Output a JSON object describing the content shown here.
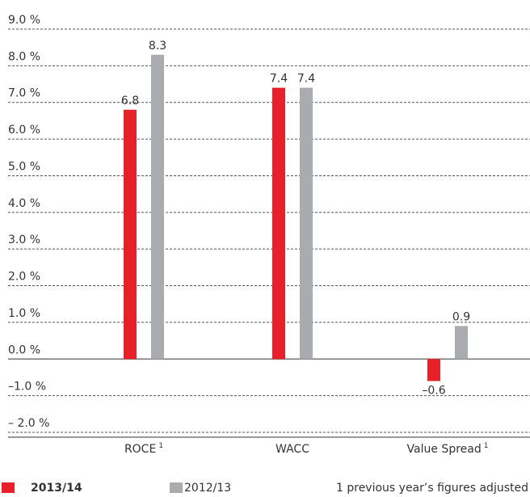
{
  "chart_data": {
    "type": "bar",
    "categories": [
      "ROCE",
      "WACC",
      "Value Spread"
    ],
    "category_notes": [
      "1",
      null,
      "1"
    ],
    "series": [
      {
        "name": "2013/14",
        "color": "#e8202a",
        "values": [
          6.8,
          7.4,
          -0.6
        ],
        "value_labels": [
          "6.8",
          "7.4",
          "–0.6"
        ]
      },
      {
        "name": "2012/13",
        "color": "#a9abae",
        "values": [
          8.3,
          7.4,
          0.9
        ],
        "value_labels": [
          "8.3",
          "7.4",
          "0.9"
        ]
      }
    ],
    "ylim": [
      -2,
      9
    ],
    "yticks": [
      {
        "value": -2,
        "label": "– 2.0 %"
      },
      {
        "value": -1,
        "label": "–1.0 %"
      },
      {
        "value": 0,
        "label": "0.0 %"
      },
      {
        "value": 1,
        "label": "1.0 %"
      },
      {
        "value": 2,
        "label": "2.0 %"
      },
      {
        "value": 3,
        "label": "3.0 %"
      },
      {
        "value": 4,
        "label": "4.0 %"
      },
      {
        "value": 5,
        "label": "5.0 %"
      },
      {
        "value": 6,
        "label": "6.0 %"
      },
      {
        "value": 7,
        "label": "7.0 %"
      },
      {
        "value": 8,
        "label": "8.0 %"
      },
      {
        "value": 9,
        "label": "9.0 %"
      }
    ],
    "grid": true,
    "footnote": "1 previous year’s figures adjusted"
  }
}
